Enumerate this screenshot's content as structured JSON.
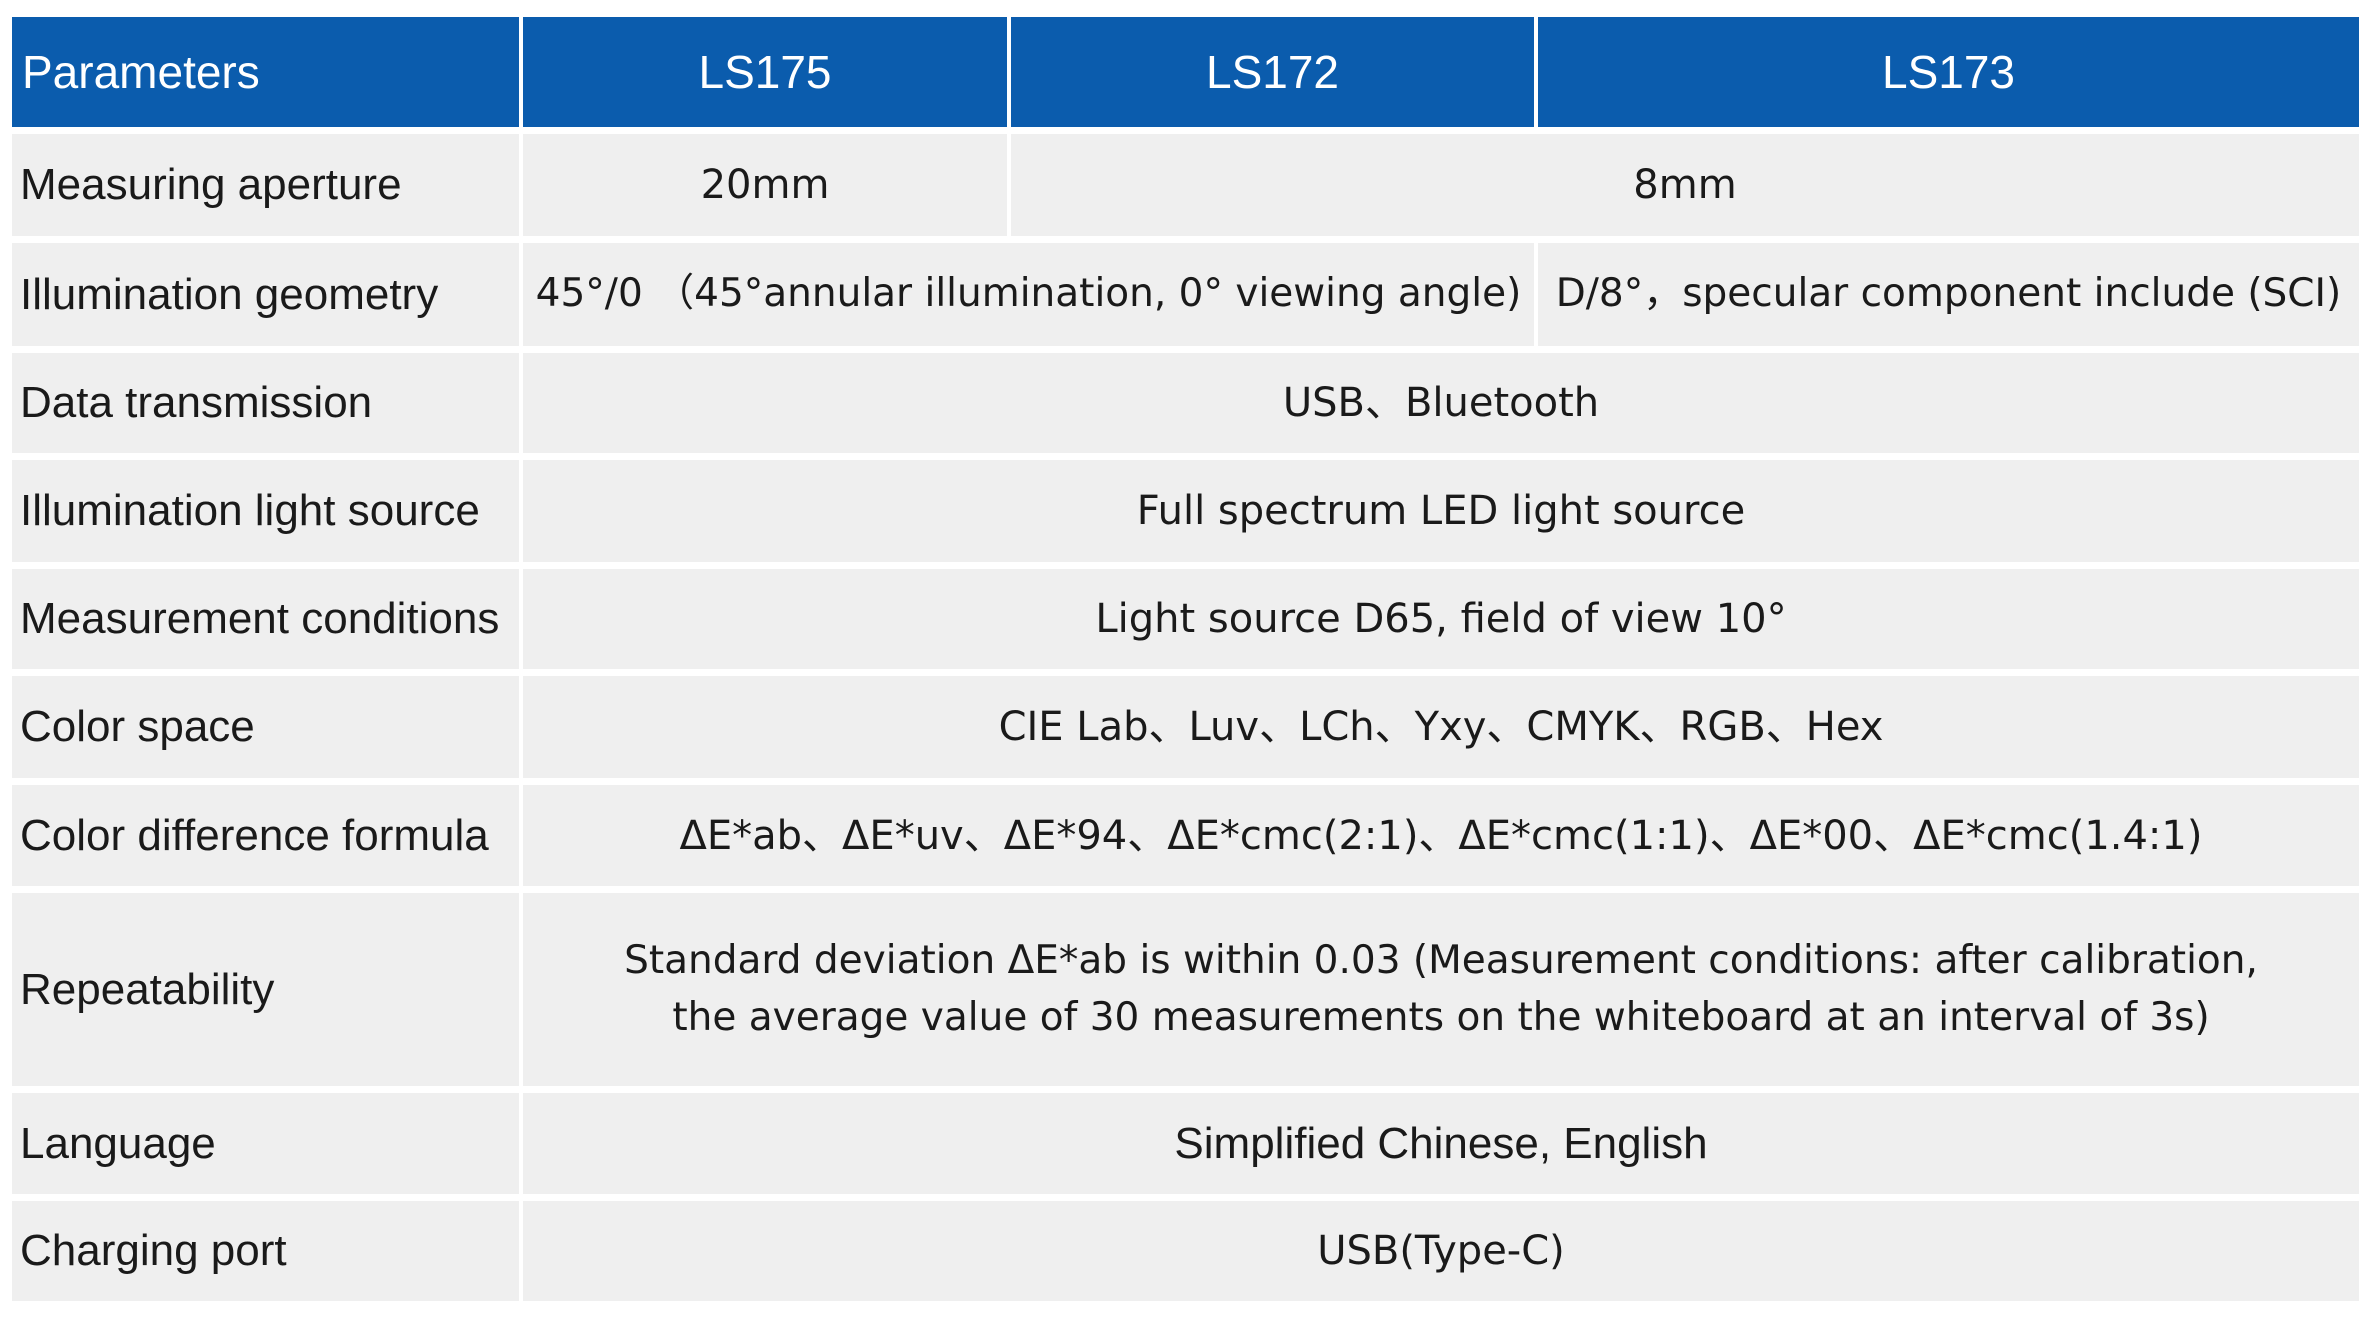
{
  "table": {
    "header": [
      "Parameters",
      "LS175",
      "LS172",
      "LS173"
    ],
    "rows": [
      {
        "label": "Measuring aperture",
        "cells": [
          "20mm",
          "8mm"
        ]
      },
      {
        "label": "Illumination geometry",
        "cells": [
          "45°/0 （45°annular illumination, 0° viewing angle)",
          "D/8°，specular component include (SCI)"
        ]
      },
      {
        "label": "Data transmission",
        "cells": [
          "USB、Bluetooth"
        ]
      },
      {
        "label": "Illumination light source",
        "cells": [
          "Full spectrum LED light source"
        ]
      },
      {
        "label": "Measurement conditions",
        "cells": [
          "Light source D65, field of view 10°"
        ]
      },
      {
        "label": "Color space",
        "cells": [
          "CIE Lab、Luv、LCh、Yxy、CMYK、RGB、Hex"
        ]
      },
      {
        "label": "Color difference formula",
        "cells": [
          "ΔE*ab、ΔE*uv、ΔE*94、ΔE*cmc(2:1)、ΔE*cmc(1:1)、ΔE*00、ΔE*cmc(1.4:1)"
        ]
      },
      {
        "label": "Repeatability",
        "cells": [
          "Standard deviation ΔE*ab is within 0.03 (Measurement conditions: after calibration,\nthe average value of 30 measurements on the whiteboard at an interval of 3s)"
        ]
      },
      {
        "label": "Language",
        "cells": [
          "Simplified Chinese, English"
        ]
      },
      {
        "label": "Charging port",
        "cells": [
          "USB(Type-C)"
        ]
      }
    ]
  }
}
